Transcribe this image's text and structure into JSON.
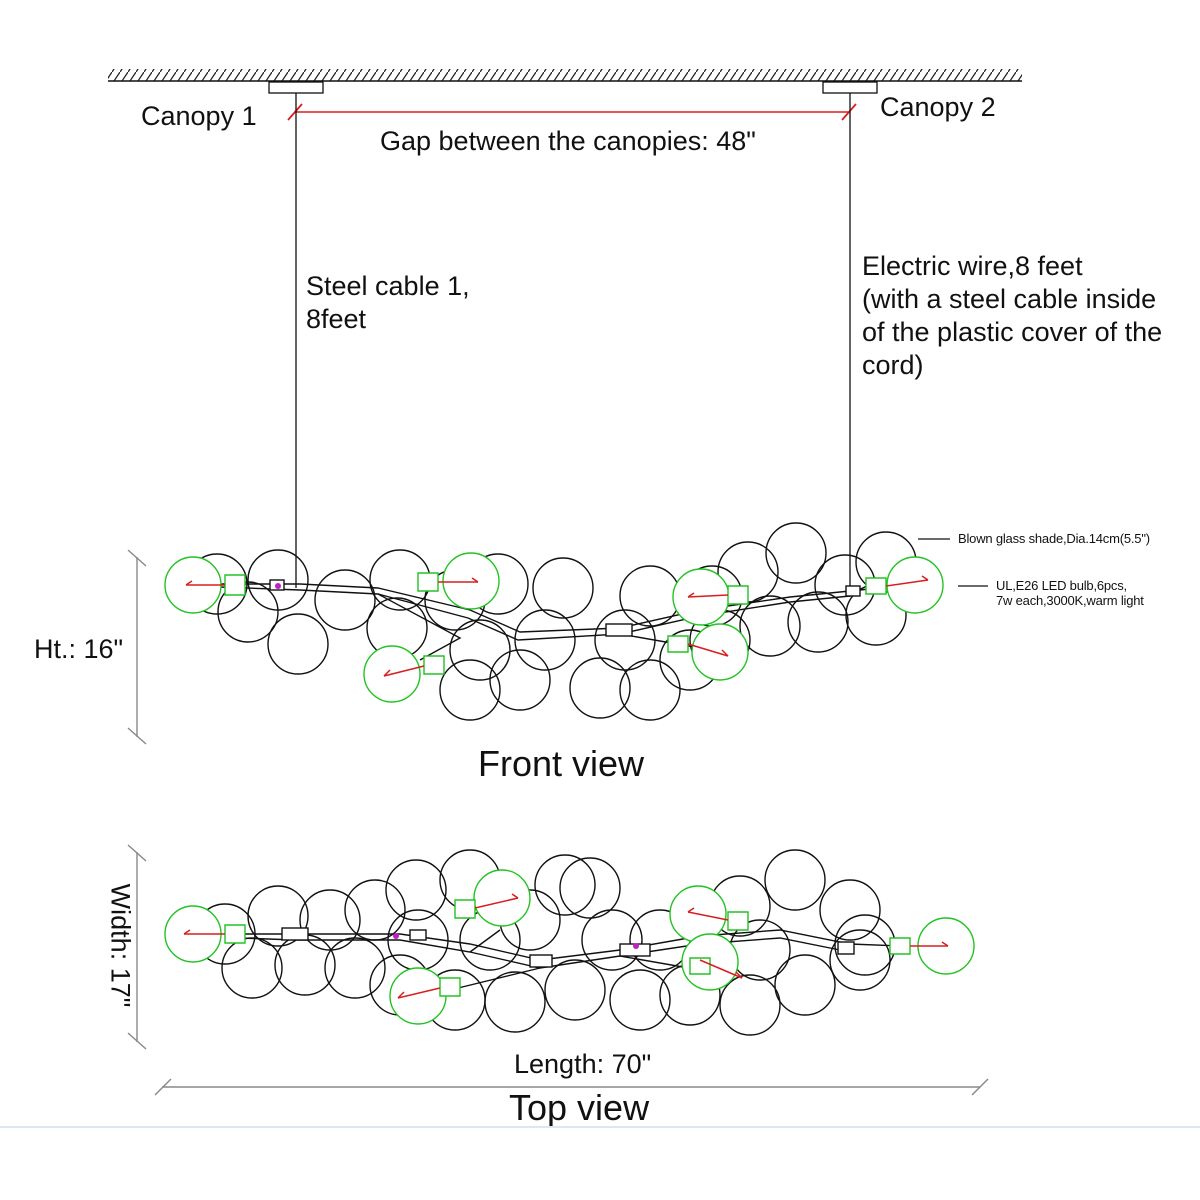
{
  "labels": {
    "canopy1": "Canopy 1",
    "canopy2": "Canopy 2",
    "gap": "Gap between the canopies: 48\"",
    "steel_cable_line1": "Steel cable 1,",
    "steel_cable_line2": "8feet",
    "wire_line1": "Electric wire,8 feet",
    "wire_line2": "(with a steel cable inside",
    "wire_line3": "of the plastic cover of the",
    "wire_line4": "cord)",
    "glass_shade": "Blown glass shade,Dia.14cm(5.5\")",
    "bulb_line1": "UL,E26 LED bulb,6pcs,",
    "bulb_line2": "7w each,3000K,warm light",
    "height": "Ht.: 16\"",
    "front_view": "Front view",
    "width": "Width: 17\"",
    "length": "Length: 70\"",
    "top_view": "Top view"
  },
  "colors": {
    "line": "#111111",
    "bulb": "#22c322",
    "arrow": "#d81e1e",
    "accent": "#c020c0",
    "dimension": "#888888"
  }
}
